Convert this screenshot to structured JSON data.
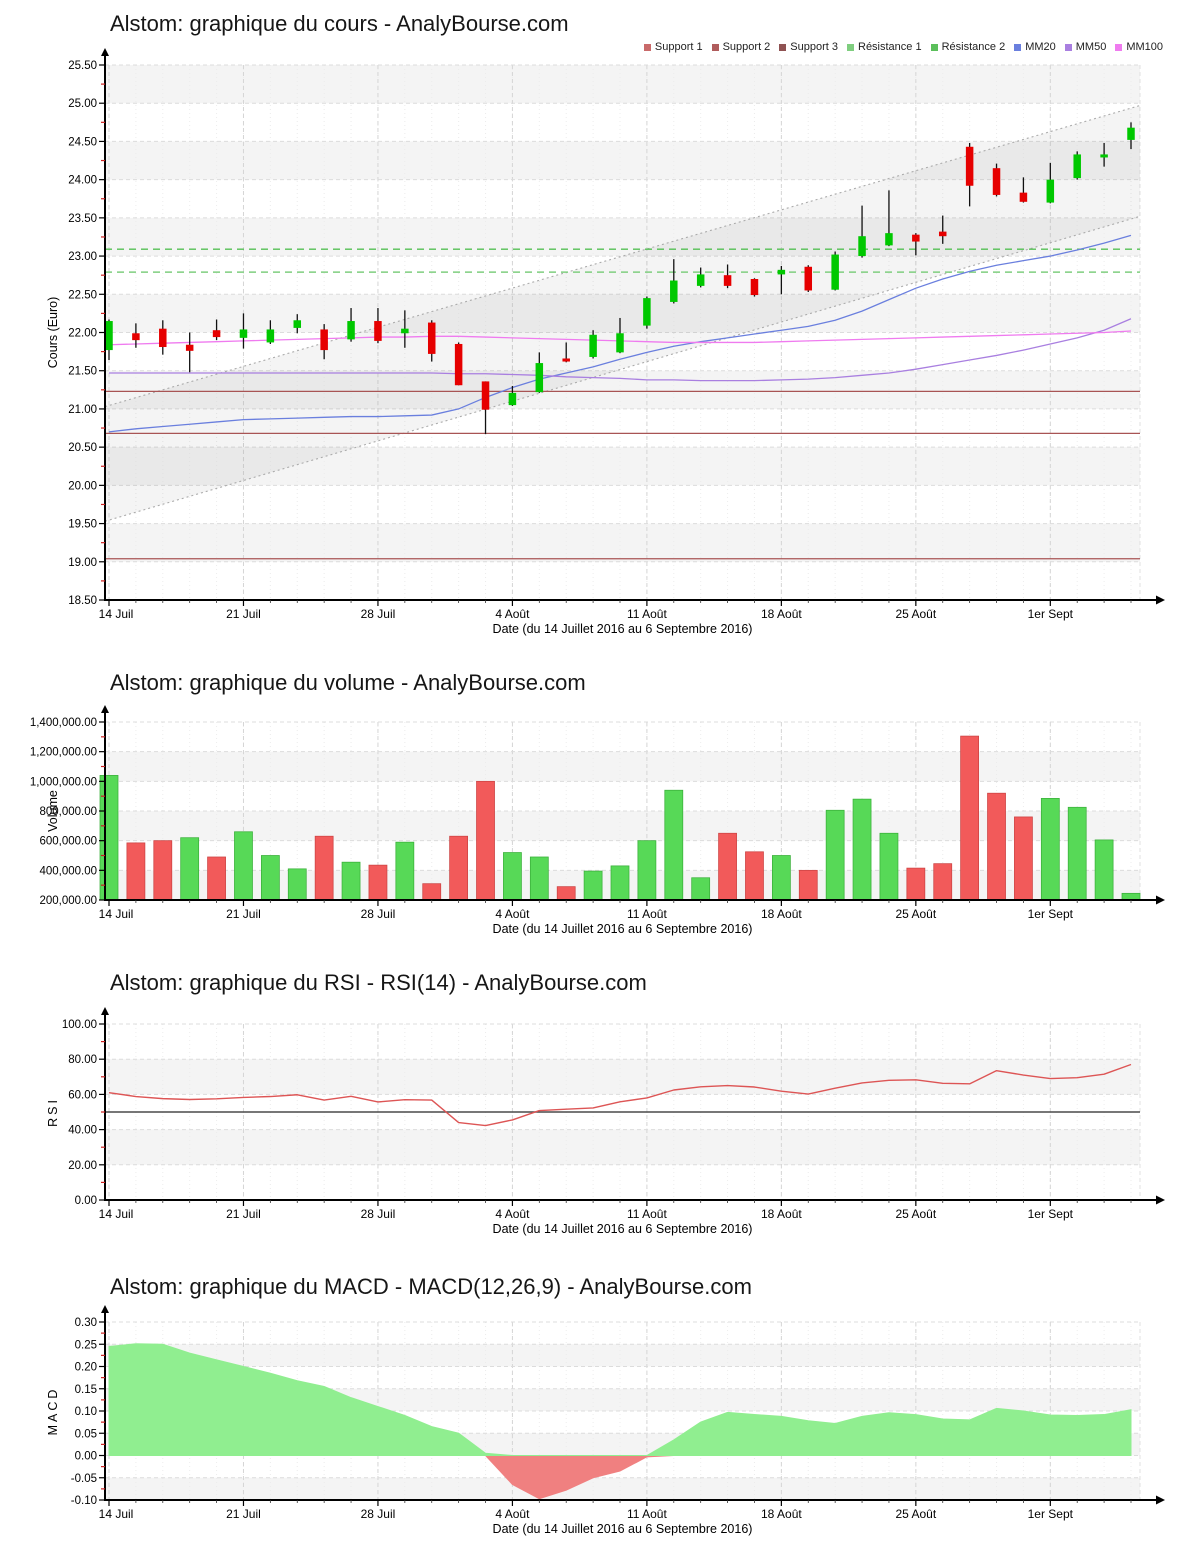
{
  "x_axis": {
    "label": "Date (du 14 Juillet 2016 au 6 Septembre 2016)",
    "ticks": [
      {
        "i": 0,
        "label": "14 Juil"
      },
      {
        "i": 5,
        "label": "21 Juil"
      },
      {
        "i": 10,
        "label": "28 Juil"
      },
      {
        "i": 15,
        "label": "4 Août"
      },
      {
        "i": 20,
        "label": "11 Août"
      },
      {
        "i": 25,
        "label": "18 Août"
      },
      {
        "i": 30,
        "label": "25 Août"
      },
      {
        "i": 35,
        "label": "1er Sept"
      }
    ]
  },
  "chart_data": [
    {
      "type": "candlestick",
      "title": "Alstom: graphique du cours - AnalyBourse.com",
      "ylabel": "Cours (Euro)",
      "ylim": [
        18.5,
        25.5
      ],
      "yticks": [
        {
          "v": 25.5,
          "label": "25.50"
        },
        {
          "v": 25.0,
          "label": "25.00"
        },
        {
          "v": 24.5,
          "label": "24.50"
        },
        {
          "v": 24.0,
          "label": "24.00"
        },
        {
          "v": 23.5,
          "label": "23.50"
        },
        {
          "v": 23.0,
          "label": "23.00"
        },
        {
          "v": 22.5,
          "label": "22.50"
        },
        {
          "v": 22.0,
          "label": "22.00"
        },
        {
          "v": 21.5,
          "label": "21.50"
        },
        {
          "v": 21.0,
          "label": "21.00"
        },
        {
          "v": 20.5,
          "label": "20.50"
        },
        {
          "v": 20.0,
          "label": "20.00"
        },
        {
          "v": 19.5,
          "label": "19.50"
        },
        {
          "v": 19.0,
          "label": "19.00"
        },
        {
          "v": 18.5,
          "label": "18.50"
        }
      ],
      "legend": [
        {
          "label": "Support 1",
          "color": "#c96a6a"
        },
        {
          "label": "Support 2",
          "color": "#b05c5c"
        },
        {
          "label": "Support 3",
          "color": "#8f5252"
        },
        {
          "label": "Résistance 1",
          "color": "#7fce7f"
        },
        {
          "label": "Résistance 2",
          "color": "#5bbf5b"
        },
        {
          "label": "MM20",
          "color": "#6a7fde"
        },
        {
          "label": "MM50",
          "color": "#a97fe0"
        },
        {
          "label": "MM100",
          "color": "#ef7bef"
        }
      ],
      "candle_colors": {
        "up": "#00c800",
        "down": "#e60000",
        "wick": "#111111"
      },
      "candles": [
        {
          "o": 21.77,
          "h": 22.17,
          "l": 21.64,
          "c": 22.15
        },
        {
          "o": 21.99,
          "h": 22.12,
          "l": 21.8,
          "c": 21.9
        },
        {
          "o": 22.05,
          "h": 22.16,
          "l": 21.71,
          "c": 21.81
        },
        {
          "o": 21.84,
          "h": 22.0,
          "l": 21.48,
          "c": 21.76
        },
        {
          "o": 22.03,
          "h": 22.17,
          "l": 21.9,
          "c": 21.94
        },
        {
          "o": 21.93,
          "h": 22.25,
          "l": 21.79,
          "c": 22.04
        },
        {
          "o": 21.87,
          "h": 22.16,
          "l": 21.85,
          "c": 22.04
        },
        {
          "o": 22.06,
          "h": 22.24,
          "l": 21.99,
          "c": 22.16
        },
        {
          "o": 22.04,
          "h": 22.11,
          "l": 21.65,
          "c": 21.77
        },
        {
          "o": 21.91,
          "h": 22.32,
          "l": 21.88,
          "c": 22.15
        },
        {
          "o": 22.15,
          "h": 22.32,
          "l": 21.86,
          "c": 21.89
        },
        {
          "o": 21.99,
          "h": 22.29,
          "l": 21.8,
          "c": 22.05
        },
        {
          "o": 22.13,
          "h": 22.16,
          "l": 21.62,
          "c": 21.72
        },
        {
          "o": 21.85,
          "h": 21.87,
          "l": 21.31,
          "c": 21.31
        },
        {
          "o": 21.36,
          "h": 21.36,
          "l": 20.67,
          "c": 20.99
        },
        {
          "o": 21.05,
          "h": 21.3,
          "l": 21.04,
          "c": 21.21
        },
        {
          "o": 21.22,
          "h": 21.74,
          "l": 21.21,
          "c": 21.6
        },
        {
          "o": 21.66,
          "h": 21.87,
          "l": 21.61,
          "c": 21.62
        },
        {
          "o": 21.68,
          "h": 22.03,
          "l": 21.66,
          "c": 21.97
        },
        {
          "o": 21.74,
          "h": 22.19,
          "l": 21.73,
          "c": 21.99
        },
        {
          "o": 22.09,
          "h": 22.47,
          "l": 22.05,
          "c": 22.45
        },
        {
          "o": 22.4,
          "h": 22.96,
          "l": 22.38,
          "c": 22.68
        },
        {
          "o": 22.61,
          "h": 22.85,
          "l": 22.59,
          "c": 22.76
        },
        {
          "o": 22.75,
          "h": 22.89,
          "l": 22.58,
          "c": 22.61
        },
        {
          "o": 22.7,
          "h": 22.71,
          "l": 22.47,
          "c": 22.49
        },
        {
          "o": 22.76,
          "h": 22.87,
          "l": 22.5,
          "c": 22.82
        },
        {
          "o": 22.86,
          "h": 22.88,
          "l": 22.53,
          "c": 22.55
        },
        {
          "o": 22.56,
          "h": 23.06,
          "l": 22.55,
          "c": 23.02
        },
        {
          "o": 23.0,
          "h": 23.66,
          "l": 22.98,
          "c": 23.26
        },
        {
          "o": 23.14,
          "h": 23.86,
          "l": 23.13,
          "c": 23.3
        },
        {
          "o": 23.28,
          "h": 23.3,
          "l": 23.01,
          "c": 23.19
        },
        {
          "o": 23.32,
          "h": 23.53,
          "l": 23.16,
          "c": 23.26
        },
        {
          "o": 24.43,
          "h": 24.48,
          "l": 23.65,
          "c": 23.92
        },
        {
          "o": 24.15,
          "h": 24.21,
          "l": 23.78,
          "c": 23.8
        },
        {
          "o": 23.83,
          "h": 24.03,
          "l": 23.7,
          "c": 23.71
        },
        {
          "o": 23.7,
          "h": 24.22,
          "l": 23.69,
          "c": 24.0
        },
        {
          "o": 24.02,
          "h": 24.37,
          "l": 24.0,
          "c": 24.33
        },
        {
          "o": 24.29,
          "h": 24.48,
          "l": 24.17,
          "c": 24.33
        },
        {
          "o": 24.52,
          "h": 24.75,
          "l": 24.4,
          "c": 24.68
        }
      ],
      "series": [
        {
          "name": "MM20",
          "color": "#6a7fde",
          "values": [
            20.7,
            20.74,
            20.77,
            20.8,
            20.83,
            20.86,
            20.87,
            20.88,
            20.89,
            20.9,
            20.9,
            20.91,
            20.92,
            21.0,
            21.15,
            21.28,
            21.39,
            21.47,
            21.55,
            21.65,
            21.74,
            21.82,
            21.88,
            21.93,
            21.98,
            22.03,
            22.08,
            22.16,
            22.28,
            22.43,
            22.58,
            22.7,
            22.8,
            22.88,
            22.94,
            23.0,
            23.08,
            23.17,
            23.27
          ]
        },
        {
          "name": "MM50",
          "color": "#a97fe0",
          "values": [
            21.47,
            21.47,
            21.47,
            21.47,
            21.47,
            21.47,
            21.47,
            21.47,
            21.47,
            21.47,
            21.47,
            21.47,
            21.47,
            21.46,
            21.46,
            21.45,
            21.44,
            21.42,
            21.41,
            21.4,
            21.38,
            21.38,
            21.37,
            21.37,
            21.37,
            21.38,
            21.39,
            21.41,
            21.44,
            21.47,
            21.52,
            21.58,
            21.64,
            21.7,
            21.77,
            21.85,
            21.93,
            22.03,
            22.18
          ]
        },
        {
          "name": "MM100",
          "color": "#ef7bef",
          "values": [
            21.84,
            21.85,
            21.86,
            21.87,
            21.88,
            21.89,
            21.9,
            21.91,
            21.92,
            21.93,
            21.94,
            21.94,
            21.95,
            21.95,
            21.94,
            21.93,
            21.92,
            21.91,
            21.9,
            21.89,
            21.88,
            21.87,
            21.87,
            21.87,
            21.87,
            21.88,
            21.89,
            21.9,
            21.91,
            21.92,
            21.93,
            21.94,
            21.95,
            21.96,
            21.97,
            21.98,
            21.99,
            22.0,
            22.02
          ]
        }
      ],
      "levels": [
        {
          "name": "Support 1",
          "v": 21.23,
          "color": "#a85454",
          "style": "solid"
        },
        {
          "name": "Support 2",
          "v": 20.68,
          "color": "#a85454",
          "style": "solid"
        },
        {
          "name": "Support 3",
          "v": 19.04,
          "color": "#a85454",
          "style": "solid"
        },
        {
          "name": "Résistance 1",
          "v": 23.09,
          "color": "#54c054",
          "style": "dashed"
        },
        {
          "name": "Résistance 2",
          "v": 22.79,
          "color": "#7fce7f",
          "style": "dashed"
        }
      ],
      "channel": {
        "lower": [
          19.53,
          23.52
        ],
        "upper": [
          21.03,
          24.97
        ],
        "line_color": "#ababab",
        "fill": "rgba(0,0,0,0.045)"
      }
    },
    {
      "type": "bar",
      "title": "Alstom: graphique du volume - AnalyBourse.com",
      "ylabel": "Volume",
      "ylim": [
        200000,
        1400000
      ],
      "yticks": [
        {
          "v": 1400000,
          "label": "1,400,000.00"
        },
        {
          "v": 1200000,
          "label": "1,200,000.00"
        },
        {
          "v": 1000000,
          "label": "1,000,000.00"
        },
        {
          "v": 800000,
          "label": "800,000.00"
        },
        {
          "v": 600000,
          "label": "600,000.00"
        },
        {
          "v": 400000,
          "label": "400,000.00"
        },
        {
          "v": 200000,
          "label": "200,000.00"
        }
      ],
      "bar_colors": {
        "up": "#57d957",
        "up_border": "#3ab03a",
        "down": "#f25a5a",
        "down_border": "#cc4343"
      },
      "values": [
        1040000,
        585000,
        600000,
        620000,
        490000,
        660000,
        500000,
        410000,
        630000,
        455000,
        435000,
        590000,
        310000,
        630000,
        1000000,
        520000,
        490000,
        290000,
        395000,
        430000,
        600000,
        940000,
        350000,
        650000,
        525000,
        500000,
        400000,
        805000,
        880000,
        650000,
        415000,
        445000,
        1305000,
        920000,
        760000,
        885000,
        825000,
        605000,
        245000
      ],
      "bar_directions": [
        "up",
        "down",
        "down",
        "up",
        "down",
        "up",
        "up",
        "up",
        "down",
        "up",
        "down",
        "up",
        "down",
        "down",
        "down",
        "up",
        "up",
        "down",
        "up",
        "up",
        "up",
        "up",
        "up",
        "down",
        "down",
        "up",
        "down",
        "up",
        "up",
        "up",
        "down",
        "down",
        "down",
        "down",
        "down",
        "up",
        "up",
        "up",
        "up"
      ]
    },
    {
      "type": "line",
      "title": "Alstom: graphique du RSI - RSI(14) - AnalyBourse.com",
      "ylabel": "RSI",
      "ylim": [
        0,
        100
      ],
      "yticks": [
        {
          "v": 100,
          "label": "100.00"
        },
        {
          "v": 80,
          "label": "80.00"
        },
        {
          "v": 60,
          "label": "60.00"
        },
        {
          "v": 40,
          "label": "40.00"
        },
        {
          "v": 20,
          "label": "20.00"
        },
        {
          "v": 0,
          "label": "0.00"
        }
      ],
      "line_color": "#dd5555",
      "baseline": {
        "v": 50,
        "color": "#4a4a4a"
      },
      "values": [
        61.0,
        58.8,
        57.6,
        57.1,
        57.5,
        58.3,
        58.8,
        59.8,
        56.8,
        58.9,
        55.7,
        57.0,
        56.8,
        44.0,
        42.3,
        45.5,
        50.8,
        51.6,
        52.3,
        55.8,
        58.0,
        62.5,
        64.3,
        65.0,
        64.2,
        61.8,
        60.2,
        63.5,
        66.5,
        68.0,
        68.3,
        66.3,
        66.0,
        73.5,
        71.0,
        69.0,
        69.5,
        71.5,
        77.0
      ]
    },
    {
      "type": "area",
      "title": "Alstom: graphique du MACD - MACD(12,26,9) - AnalyBourse.com",
      "ylabel": "MACD",
      "ylim": [
        -0.1,
        0.3
      ],
      "yticks": [
        {
          "v": 0.3,
          "label": "0.30"
        },
        {
          "v": 0.25,
          "label": "0.25"
        },
        {
          "v": 0.2,
          "label": "0.20"
        },
        {
          "v": 0.15,
          "label": "0.15"
        },
        {
          "v": 0.1,
          "label": "0.10"
        },
        {
          "v": 0.05,
          "label": "0.05"
        },
        {
          "v": 0.0,
          "label": "0.00"
        },
        {
          "v": -0.05,
          "label": "-0.05"
        },
        {
          "v": -0.1,
          "label": "-0.10"
        }
      ],
      "pos_color": "#90ee90",
      "neg_color": "#f08080",
      "values": [
        0.245,
        0.251,
        0.25,
        0.23,
        0.215,
        0.2,
        0.185,
        0.168,
        0.155,
        0.13,
        0.11,
        0.09,
        0.065,
        0.05,
        0.005,
        -0.065,
        -0.097,
        -0.078,
        -0.05,
        -0.035,
        -0.003,
        0.035,
        0.075,
        0.097,
        0.092,
        0.088,
        0.078,
        0.072,
        0.088,
        0.096,
        0.092,
        0.082,
        0.08,
        0.106,
        0.1,
        0.091,
        0.09,
        0.092,
        0.103
      ]
    }
  ]
}
